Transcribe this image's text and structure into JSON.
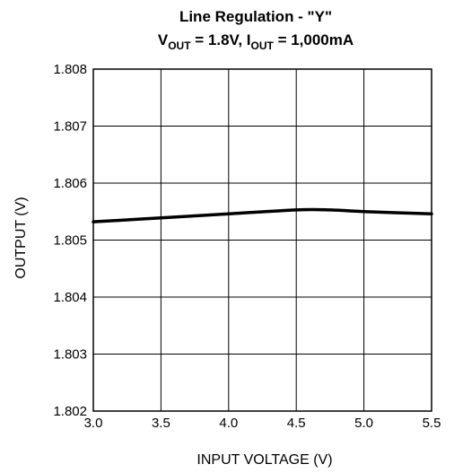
{
  "chart_data": {
    "type": "line",
    "title": "Line Regulation - \"Y\"",
    "subtitle": {
      "v_main": "V",
      "v_sub": "OUT",
      "v_value": " = 1.8V, ",
      "i_main": "I",
      "i_sub": "OUT",
      "i_value": " = 1,000mA"
    },
    "xlabel": "INPUT VOLTAGE (V)",
    "ylabel": "OUTPUT (V)",
    "xlim": [
      3.0,
      5.5
    ],
    "ylim": [
      1.802,
      1.808
    ],
    "x_ticks": [
      "3.0",
      "3.5",
      "4.0",
      "4.5",
      "5.0",
      "5.5"
    ],
    "y_ticks": [
      "1.808",
      "1.807",
      "1.806",
      "1.805",
      "1.804",
      "1.803",
      "1.802"
    ],
    "grid": true,
    "series": [
      {
        "x": [
          3.0,
          3.5,
          4.0,
          4.5,
          4.75,
          5.0,
          5.5
        ],
        "y": [
          1.80532,
          1.80539,
          1.80546,
          1.80553,
          1.80553,
          1.8055,
          1.80546
        ]
      }
    ]
  }
}
